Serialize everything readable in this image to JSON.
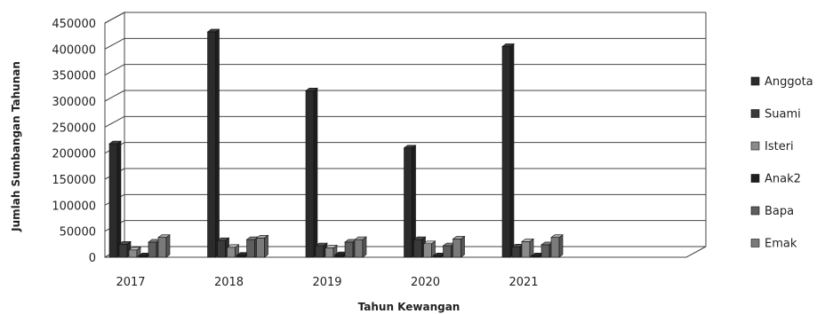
{
  "chart_data": {
    "type": "bar",
    "title": "",
    "xlabel": "Tahun Kewangan",
    "ylabel": "Jumlah Sumbangan Tahunan",
    "ylim": [
      0,
      450000
    ],
    "yticks": [
      0,
      50000,
      100000,
      150000,
      200000,
      250000,
      300000,
      350000,
      400000,
      450000
    ],
    "grid": true,
    "legend_position": "right",
    "categories": [
      "2017",
      "2018",
      "2019",
      "2020",
      "2021"
    ],
    "series": [
      {
        "name": "Anggota",
        "color": "#2b2b2b",
        "values": [
          218000,
          433000,
          320000,
          210000,
          405000
        ]
      },
      {
        "name": "Suami",
        "color": "#3a3a3a",
        "values": [
          25000,
          32000,
          22000,
          34000,
          20000
        ]
      },
      {
        "name": "Isteri",
        "color": "#8a8a8a",
        "values": [
          14000,
          19000,
          18000,
          26000,
          30000
        ]
      },
      {
        "name": "Anak2",
        "color": "#1e1e1e",
        "values": [
          3000,
          4000,
          5000,
          3000,
          3000
        ]
      },
      {
        "name": "Bapa",
        "color": "#5e5e5e",
        "values": [
          29000,
          34000,
          29000,
          22000,
          24000
        ]
      },
      {
        "name": "Emak",
        "color": "#7a7a7a",
        "values": [
          38000,
          37000,
          34000,
          35000,
          38000
        ]
      }
    ]
  }
}
